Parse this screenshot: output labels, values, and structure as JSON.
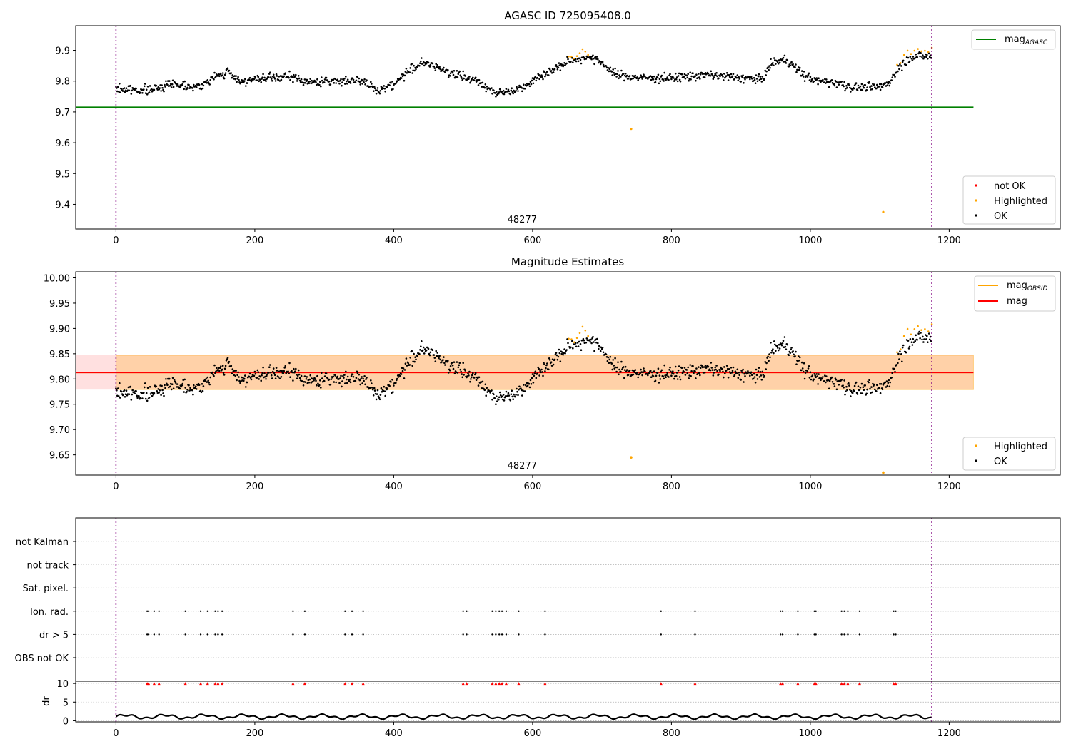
{
  "figure": {
    "panel1_title": "AGASC ID 725095408.0",
    "panel2_title": "Magnitude Estimates",
    "obsid_label": "48277"
  },
  "colors": {
    "ok": "#000000",
    "highlighted": "#ffa500",
    "not_ok": "#ff0000",
    "mag_agasc": "#008000",
    "mag_obsid": "#ffa500",
    "mag": "#ff0000",
    "obs_boundary": "#800080",
    "band_red": "#ff0000",
    "band_orange": "#ffa500",
    "grid": "#b0b0b0"
  },
  "chart_data": [
    {
      "type": "scatter",
      "title": "AGASC ID 725095408.0",
      "xlim": [
        -58,
        1360
      ],
      "ylim": [
        9.32,
        9.98
      ],
      "xticks": [
        0,
        200,
        400,
        600,
        800,
        1000,
        1200
      ],
      "yticks": [
        9.4,
        9.5,
        9.6,
        9.7,
        9.8,
        9.9
      ],
      "lines": [
        {
          "name": "mag_AGASC",
          "value": 9.715,
          "x_range": [
            -58,
            1235
          ]
        }
      ],
      "obs_boundaries": [
        0,
        1175
      ],
      "obsid_annotation": {
        "text": "48277",
        "x": 585
      },
      "legend_lines": [
        {
          "label": "mag",
          "sub": "AGASC",
          "color": "#008000"
        }
      ],
      "legend_points": [
        {
          "label": "not OK",
          "color": "#ff0000"
        },
        {
          "label": "Highlighted",
          "color": "#ffa500"
        },
        {
          "label": "OK",
          "color": "#000000"
        }
      ],
      "outliers": [
        {
          "x": 742,
          "y": 9.645
        },
        {
          "x": 1105,
          "y": 9.375
        }
      ]
    },
    {
      "type": "scatter",
      "title": "Magnitude Estimates",
      "xlim": [
        -58,
        1360
      ],
      "ylim": [
        9.61,
        10.012
      ],
      "xticks": [
        0,
        200,
        400,
        600,
        800,
        1000,
        1200
      ],
      "yticks": [
        9.65,
        9.7,
        9.75,
        9.8,
        9.85,
        9.9,
        9.95,
        10.0
      ],
      "lines": [
        {
          "name": "mag_OBSID",
          "value": 9.813,
          "x_range": [
            -58,
            1235
          ]
        },
        {
          "name": "mag",
          "value": 9.813,
          "x_range": [
            -58,
            1235
          ]
        }
      ],
      "bands": [
        {
          "name": "mag_err",
          "low": 9.779,
          "high": 9.847,
          "x_range": [
            -58,
            1235
          ]
        },
        {
          "name": "mag_OBSID_err",
          "low": 9.779,
          "high": 9.847,
          "x_range": [
            0,
            1235
          ]
        }
      ],
      "obs_boundaries": [
        0,
        1175
      ],
      "obsid_annotation": {
        "text": "48277",
        "x": 585
      },
      "legend_lines": [
        {
          "label": "mag",
          "sub": "OBSID",
          "color": "#ffa500"
        },
        {
          "label": "mag",
          "sub": "",
          "color": "#ff0000"
        }
      ],
      "legend_points": [
        {
          "label": "Highlighted",
          "color": "#ffa500"
        },
        {
          "label": "OK",
          "color": "#000000"
        }
      ],
      "outliers": [
        {
          "x": 742,
          "y": 9.645
        },
        {
          "x": 1105,
          "y": 9.615
        }
      ]
    },
    {
      "type": "scatter",
      "title": "",
      "xlim": [
        -58,
        1360
      ],
      "categories": [
        "not Kalman",
        "not track",
        "Sat. pixel.",
        "Ion. rad.",
        "dr > 5",
        "OBS not OK"
      ],
      "flag_x": [
        45,
        47,
        55,
        62,
        100,
        122,
        132,
        143,
        147,
        153,
        255,
        272,
        330,
        340,
        356,
        500,
        505,
        542,
        547,
        552,
        556,
        562,
        580,
        618,
        785,
        834,
        957,
        960,
        982,
        1006,
        1008,
        1045,
        1049,
        1054,
        1071,
        1120,
        1123
      ],
      "obs_boundaries": [
        0,
        1175
      ]
    },
    {
      "type": "line",
      "title": "",
      "ylabel": "dr",
      "xlim": [
        -58,
        1360
      ],
      "ylim": [
        -0.3,
        10.6
      ],
      "xticks": [
        0,
        200,
        400,
        600,
        800,
        1000,
        1200
      ],
      "yticks": [
        0,
        5,
        10
      ],
      "dr_baseline_mean": 1.1,
      "dr_flag_value": 10,
      "obs_boundaries": [
        0,
        1175
      ]
    }
  ]
}
